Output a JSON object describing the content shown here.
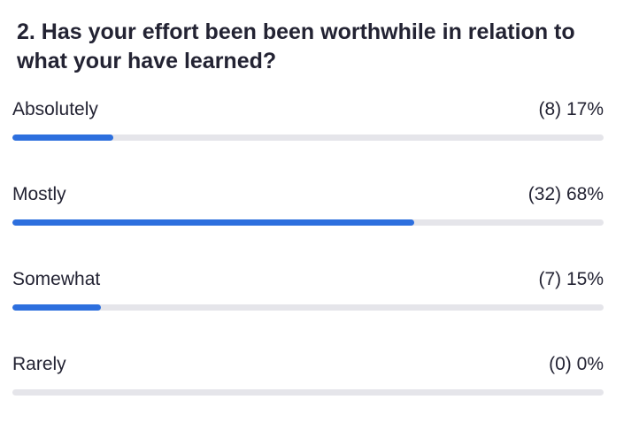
{
  "poll": {
    "question": "2. Has your effort been been worthwhile in relation to what your have learned?",
    "accent_color": "#2d6fde",
    "track_color": "#e5e5ea",
    "options": [
      {
        "label": "Absolutely",
        "count": "(8)",
        "percent": "17%",
        "fraction": 0.17
      },
      {
        "label": "Mostly",
        "count": "(32)",
        "percent": "68%",
        "fraction": 0.68
      },
      {
        "label": "Somewhat",
        "count": "(7)",
        "percent": "15%",
        "fraction": 0.15
      },
      {
        "label": "Rarely",
        "count": "(0)",
        "percent": "0%",
        "fraction": 0.0
      }
    ]
  }
}
